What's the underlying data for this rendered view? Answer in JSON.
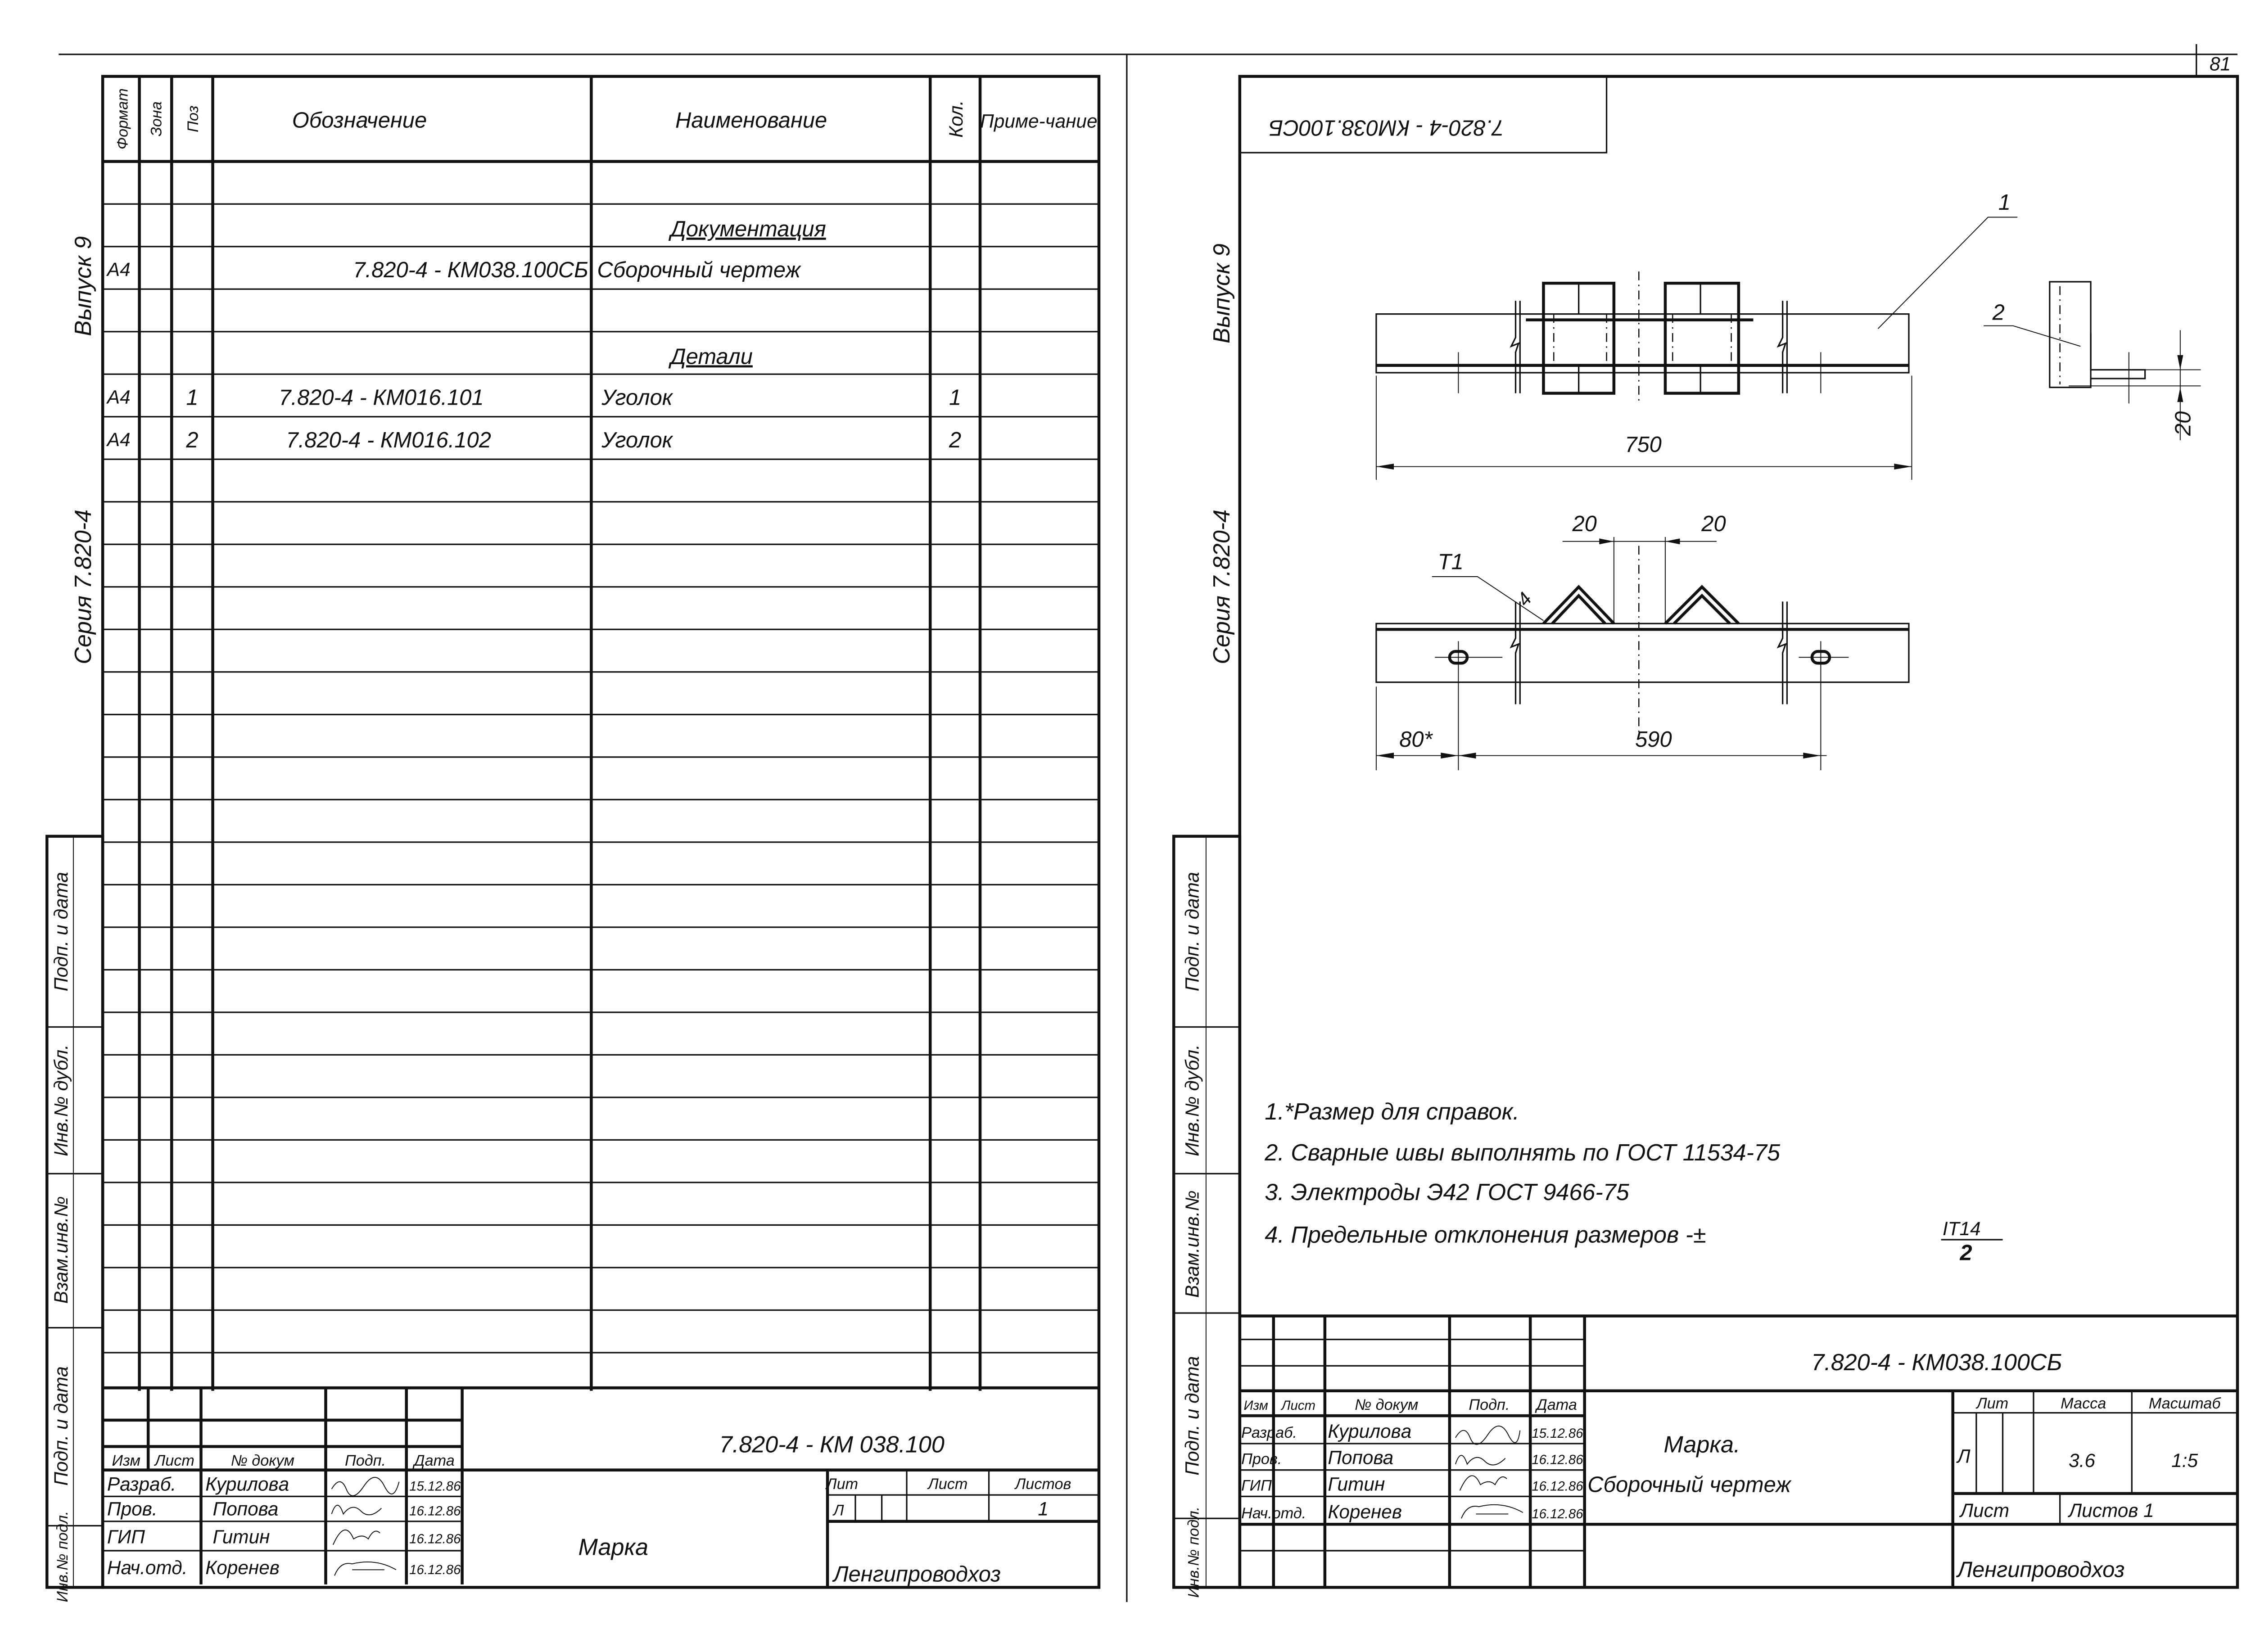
{
  "page_number": "81",
  "left_sheet": {
    "side_labels": {
      "series": "Серия 7.820-4",
      "issue": "Выпуск 9"
    },
    "strip_labels": [
      "Подп. и дата",
      "Инв.№ дубл.",
      "Взам.инв.№",
      "Подп. и дата",
      "Инв.№ подл."
    ],
    "spec_header": {
      "format": "Формат",
      "zone": "Зона",
      "pos": "Поз",
      "designation": "Обозначение",
      "name": "Наименование",
      "qty": "Кол.",
      "note": "Приме-чание"
    },
    "spec_rows": [
      {
        "name": "Документация",
        "section": true
      },
      {
        "format": "А4",
        "designation": "7.820-4 - КМ038.100СБ",
        "name": "Сборочный чертеж"
      },
      {
        "name": "Детали",
        "section": true
      },
      {
        "format": "А4",
        "pos": "1",
        "designation": "7.820-4 - КМ016.101",
        "name": "Уголок",
        "qty": "1"
      },
      {
        "format": "А4",
        "pos": "2",
        "designation": "7.820-4 - КМ016.102",
        "name": "Уголок",
        "qty": "2"
      }
    ],
    "title_block": {
      "code": "7.820-4 - КМ 038.100",
      "headers": [
        "Изм",
        "Лист",
        "№ докум",
        "Подп.",
        "Дата"
      ],
      "people": [
        {
          "role": "Разраб.",
          "name": "Куриловa",
          "date": "15.12.86"
        },
        {
          "role": "Пров.",
          "name": "Попова",
          "date": "16.12.86"
        },
        {
          "role": "ГИП",
          "name": "Гитин",
          "date": "16.12.86"
        },
        {
          "role": "Нач.отд.",
          "name": "Коренев",
          "date": "16.12.86"
        }
      ],
      "title": "Марка",
      "lit_label": "Лит",
      "sheet_label": "Лист",
      "sheets_label": "Листов",
      "lit_value": "Л",
      "sheets_value": "1",
      "org": "Ленгипроводхоз"
    }
  },
  "right_sheet": {
    "side_labels": {
      "series": "Серия 7.820-4",
      "issue": "Выпуск 9"
    },
    "strip_labels": [
      "Подп. и дата",
      "Инв.№ дубл.",
      "Взам.инв.№",
      "Подп. и дата",
      "Инв.№ подл."
    ],
    "stamp_code": "7.820-4 - КМ038.100СБ",
    "drawing": {
      "leader_1": "1",
      "leader_2": "2",
      "dim_length": "750",
      "dim_side": "20",
      "dim_left_gap": "20",
      "dim_right_gap": "20",
      "weld_mark": "Т1",
      "weld_leg": "4",
      "dim_edge": "80*",
      "dim_holes": "590"
    },
    "notes": [
      "1.*Размер для справок.",
      "2. Сварные швы выполнять по ГОСТ 11534-75",
      "3. Электроды Э42 ГОСТ 9466-75",
      "4. Предельные отклонения размеров -±"
    ],
    "tolerance": {
      "numerator": "IT14",
      "denominator": "2"
    },
    "title_block": {
      "code": "7.820-4 - КМ038.100СБ",
      "headers": [
        "Изм",
        "Лист",
        "№ докум",
        "Подп.",
        "Дата"
      ],
      "people": [
        {
          "role": "Разраб.",
          "name": "Куриловa",
          "date": "15.12.86"
        },
        {
          "role": "Пров.",
          "name": "Попова",
          "date": "16.12.86"
        },
        {
          "role": "ГИП",
          "name": "Гитин",
          "date": "16.12.86"
        },
        {
          "role": "Нач.отд.",
          "name": "Коренев",
          "date": "16.12.86"
        }
      ],
      "title": "Марка.",
      "subtitle": "Сборочный чертеж",
      "lit_label": "Лит",
      "mass_label": "Масса",
      "scale_label": "Масштаб",
      "lit_value": "Л",
      "mass_value": "3.6",
      "scale_value": "1:5",
      "sheet_label": "Лист",
      "sheets_label": "Листов 1",
      "org": "Ленгипроводхоз"
    }
  }
}
